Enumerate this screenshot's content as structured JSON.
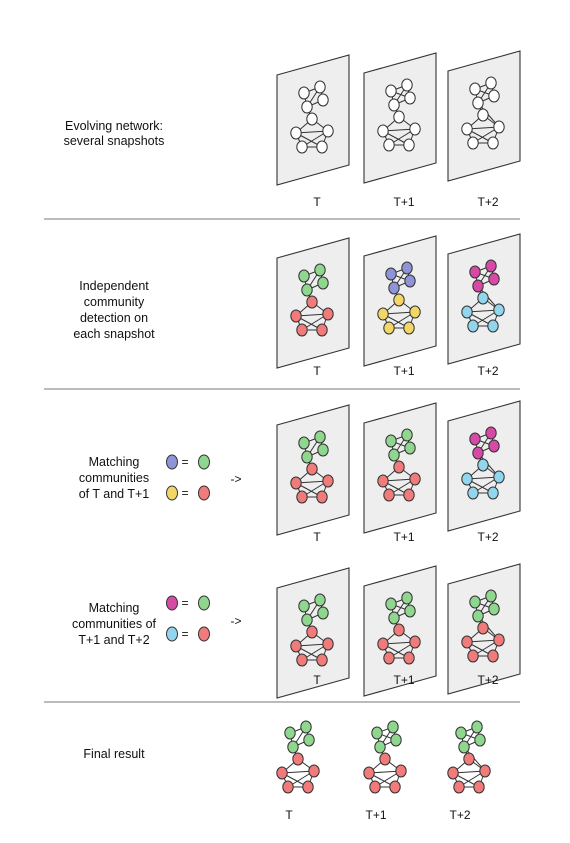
{
  "sections": [
    {
      "key": "evolving",
      "label_lines": [
        "Evolving network:",
        "several snapshots"
      ]
    },
    {
      "key": "independent",
      "label_lines": [
        "Independent",
        "community",
        "detection on",
        "each snapshot"
      ]
    },
    {
      "key": "match1",
      "label_lines": [
        "Matching",
        "communities",
        "of T and T+1"
      ]
    },
    {
      "key": "match2",
      "label_lines": [
        "Matching",
        "communities of",
        "T+1 and T+2"
      ]
    },
    {
      "key": "final",
      "label_lines": [
        "Final result"
      ]
    }
  ],
  "time_labels": [
    "T",
    "T+1",
    "T+2"
  ],
  "equals_sign": "=",
  "arrow_text": "->",
  "colors": {
    "white": "#ffffff",
    "green": "#8fd68f",
    "red": "#ef7b7b",
    "blue": "#8f94d8",
    "yellow": "#f3d766",
    "magenta": "#d64aa6",
    "cyan": "#92d6ee",
    "panel": "#eeeeee",
    "divider": "#777777"
  },
  "rows": [
    {
      "key": "evolving",
      "scheme": [
        [
          "white",
          "white"
        ],
        [
          "white",
          "white"
        ],
        [
          "white",
          "white"
        ]
      ]
    },
    {
      "key": "independent",
      "scheme": [
        [
          "green",
          "red"
        ],
        [
          "blue",
          "yellow"
        ],
        [
          "magenta",
          "cyan"
        ]
      ]
    },
    {
      "key": "match1",
      "scheme": [
        [
          "green",
          "red"
        ],
        [
          "green",
          "red"
        ],
        [
          "magenta",
          "cyan"
        ]
      ]
    },
    {
      "key": "match2",
      "scheme": [
        [
          "green",
          "red"
        ],
        [
          "green",
          "red"
        ],
        [
          "green",
          "red"
        ]
      ]
    },
    {
      "key": "final",
      "scheme": [
        [
          "green",
          "red"
        ],
        [
          "green",
          "red"
        ],
        [
          "green",
          "red"
        ]
      ]
    }
  ],
  "matchings": [
    {
      "key": "match1",
      "pairs": [
        [
          "blue",
          "green"
        ],
        [
          "yellow",
          "red"
        ]
      ]
    },
    {
      "key": "match2",
      "pairs": [
        [
          "magenta",
          "green"
        ],
        [
          "cyan",
          "red"
        ]
      ]
    }
  ]
}
